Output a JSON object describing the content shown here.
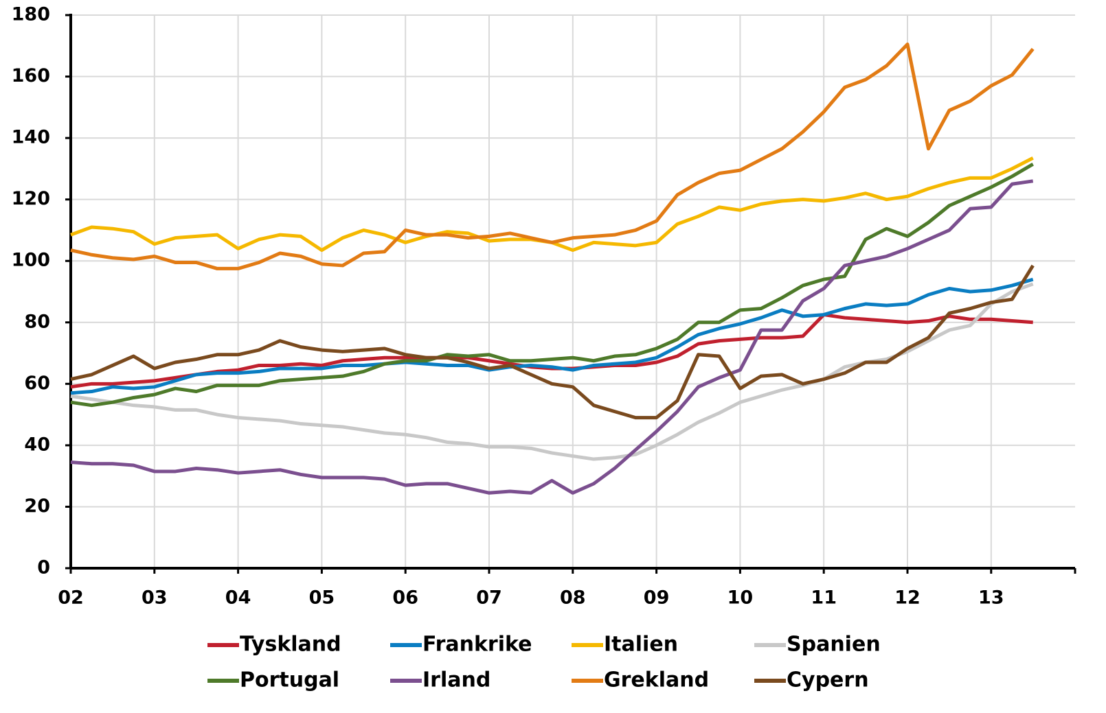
{
  "chart_data": {
    "type": "line",
    "categories": [
      "02",
      null,
      null,
      null,
      "03",
      null,
      null,
      null,
      "04",
      null,
      null,
      null,
      "05",
      null,
      null,
      null,
      "06",
      null,
      null,
      null,
      "07",
      null,
      null,
      null,
      "08",
      null,
      null,
      null,
      "09",
      null,
      null,
      null,
      "10",
      null,
      null,
      null,
      "11",
      null,
      null,
      null,
      "12",
      null,
      null,
      null,
      "13",
      null,
      null
    ],
    "ylim": [
      0,
      180
    ],
    "yticks": [
      0,
      20,
      40,
      60,
      80,
      100,
      120,
      140,
      160,
      180
    ],
    "grid": true,
    "series": [
      {
        "name": "Tyskland",
        "color": "#c0202e",
        "values": [
          59,
          60,
          60,
          60.5,
          61,
          62,
          63,
          64,
          64.5,
          66,
          66,
          66.5,
          66,
          67.5,
          68,
          68.5,
          68.5,
          68.5,
          68.5,
          68.5,
          67.5,
          66.5,
          65.5,
          65,
          65,
          65.5,
          66,
          66,
          67,
          69,
          73,
          74,
          74.5,
          75,
          75,
          75.5,
          82.5,
          81.5,
          81,
          80.5,
          80,
          80.5,
          82,
          81,
          81,
          80.5,
          80
        ]
      },
      {
        "name": "Frankrike",
        "color": "#0a7dc2",
        "values": [
          57,
          57.5,
          59,
          58.5,
          59,
          61,
          63,
          63.5,
          63.5,
          64,
          65,
          65,
          65,
          66,
          66,
          66.5,
          67,
          66.5,
          66,
          66,
          64.5,
          65.5,
          66,
          65.5,
          64.5,
          66,
          66.5,
          67,
          68.5,
          72,
          76,
          78,
          79.5,
          81.5,
          84,
          82,
          82.5,
          84.5,
          86,
          85.5,
          86,
          89,
          91,
          90,
          90.5,
          92,
          94
        ]
      },
      {
        "name": "Italien",
        "color": "#f5b800",
        "values": [
          108.5,
          111,
          110.5,
          109.5,
          105.5,
          107.5,
          108,
          108.5,
          104,
          107,
          108.5,
          108,
          103.5,
          107.5,
          110,
          108.5,
          106,
          108,
          109.5,
          109,
          106.5,
          107,
          107,
          106,
          103.5,
          106,
          105.5,
          105,
          106,
          112,
          114.5,
          117.5,
          116.5,
          118.5,
          119.5,
          120,
          119.5,
          120.5,
          122,
          120,
          121,
          123.5,
          125.5,
          127,
          127,
          130,
          133.5
        ]
      },
      {
        "name": "Spanien",
        "color": "#c8c8c8",
        "values": [
          56,
          55,
          54,
          53,
          52.5,
          51.5,
          51.5,
          50,
          49,
          48.5,
          48,
          47,
          46.5,
          46,
          45,
          44,
          43.5,
          42.5,
          41,
          40.5,
          39.5,
          39.5,
          39,
          37.5,
          36.5,
          35.5,
          36,
          37,
          40,
          43.5,
          47.5,
          50.5,
          54,
          56,
          58,
          59.5,
          61.5,
          65.5,
          67,
          68,
          70.5,
          74,
          77.5,
          79,
          86,
          90,
          92.5
        ]
      },
      {
        "name": "Portugal",
        "color": "#4e7a2a",
        "values": [
          54,
          53,
          54,
          55.5,
          56.5,
          58.5,
          57.5,
          59.5,
          59.5,
          59.5,
          61,
          61.5,
          62,
          62.5,
          64,
          66.5,
          67.5,
          67.5,
          69.5,
          69,
          69.5,
          67.5,
          67.5,
          68,
          68.5,
          67.5,
          69,
          69.5,
          71.5,
          74.5,
          80,
          80,
          84,
          84.5,
          88,
          92,
          94,
          95,
          107,
          110.5,
          108,
          112.5,
          118,
          121,
          124,
          127.5,
          131.5
        ]
      },
      {
        "name": "Irland",
        "color": "#7b4f8f",
        "values": [
          34.5,
          34,
          34,
          33.5,
          31.5,
          31.5,
          32.5,
          32,
          31,
          31.5,
          32,
          30.5,
          29.5,
          29.5,
          29.5,
          29,
          27,
          27.5,
          27.5,
          26,
          24.5,
          25,
          24.5,
          28.5,
          24.5,
          27.5,
          32.5,
          38.5,
          44.5,
          51,
          59,
          62,
          64.5,
          77.5,
          77.5,
          87,
          91,
          98.5,
          100,
          101.5,
          104,
          107,
          110,
          117,
          117.5,
          125,
          126
        ]
      },
      {
        "name": "Grekland",
        "color": "#e27b14",
        "values": [
          103.5,
          102,
          101,
          100.5,
          101.5,
          99.5,
          99.5,
          97.5,
          97.5,
          99.5,
          102.5,
          101.5,
          99,
          98.5,
          102.5,
          103,
          110,
          108.5,
          108.5,
          107.5,
          108,
          109,
          107.5,
          106,
          107.5,
          108,
          108.5,
          110,
          113,
          121.5,
          125.5,
          128.5,
          129.5,
          133,
          136.5,
          142,
          148.5,
          156.5,
          159,
          163.5,
          170.5,
          136.5,
          149,
          152,
          157,
          160.5,
          169
        ]
      },
      {
        "name": "Cypern",
        "color": "#7a4a1e",
        "values": [
          61.5,
          63,
          66,
          69,
          65,
          67,
          68,
          69.5,
          69.5,
          71,
          74,
          72,
          71,
          70.5,
          71,
          71.5,
          69.5,
          68.5,
          68.5,
          67,
          65,
          66,
          63,
          60,
          59,
          53,
          51,
          49,
          49,
          54.5,
          69.5,
          69,
          58.5,
          62.5,
          63,
          60,
          61.5,
          63.5,
          67,
          67,
          71.5,
          75,
          83,
          84.5,
          86.5,
          87.5,
          98.5
        ]
      }
    ]
  }
}
